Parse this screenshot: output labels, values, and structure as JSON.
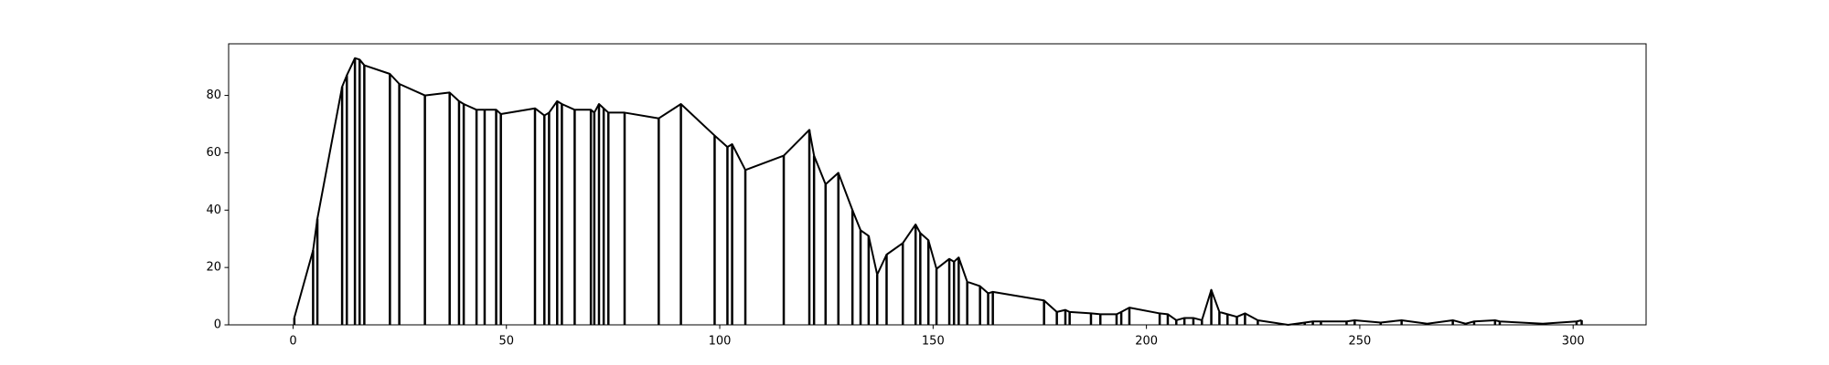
{
  "chart_data": {
    "type": "line",
    "color": "#000000",
    "x": [
      0.3,
      4.7,
      5.7,
      11.5,
      12.6,
      14.5,
      15.6,
      16.7,
      22.7,
      24.9,
      30.9,
      36.7,
      38.9,
      40,
      43,
      44.9,
      47.6,
      48.7,
      56.7,
      58.9,
      60,
      61.9,
      63,
      66,
      69.8,
      70.6,
      71.7,
      72.8,
      73.9,
      77.7,
      85.7,
      90.9,
      98.8,
      101.8,
      102.9,
      106,
      115,
      121,
      122.1,
      124.8,
      127.8,
      131.1,
      133,
      134.9,
      136.9,
      139.1,
      142.9,
      145.9,
      147,
      148.9,
      150.8,
      153.8,
      154.9,
      156,
      158,
      161,
      162.9,
      164,
      176,
      179,
      181,
      182,
      187,
      189.2,
      193,
      194.1,
      196,
      203.1,
      205,
      207,
      208.9,
      211,
      213,
      215.2,
      217.1,
      219,
      221.2,
      223.1,
      226.1,
      233.2,
      237.1,
      239,
      240.9,
      246.9,
      248.8,
      254.9,
      259.8,
      265.8,
      271.8,
      274.8,
      276.8,
      281.7,
      282.8,
      292.9,
      300.8,
      302
    ],
    "values": [
      2.5,
      26,
      37,
      83,
      87,
      93,
      92.5,
      90.5,
      87.5,
      84,
      80,
      81,
      78,
      77,
      75,
      75,
      75,
      73.5,
      75.5,
      73,
      74,
      78,
      77,
      75,
      75,
      74,
      77,
      75.5,
      74,
      74,
      72,
      77,
      66,
      62,
      63,
      54,
      59,
      68,
      59,
      49,
      53,
      40,
      33,
      31,
      17.5,
      24.5,
      28.5,
      35,
      32,
      29.5,
      19.5,
      23,
      22,
      23.5,
      15,
      13.5,
      11,
      11.5,
      8.5,
      4.5,
      5.2,
      4.5,
      4,
      3.7,
      3.7,
      4.5,
      6,
      4,
      3.7,
      1.6,
      2.4,
      2.4,
      1.6,
      12.2,
      4.5,
      3.7,
      2.8,
      4,
      1.6,
      0,
      0.8,
      1.2,
      1.2,
      1.2,
      1.6,
      0.8,
      1.6,
      0.4,
      1.6,
      0.4,
      1.2,
      1.6,
      1.2,
      0.4,
      1.2,
      1.6
    ],
    "xlim": [
      -15.1,
      317.1
    ],
    "xticks": [
      0,
      50,
      100,
      150,
      200,
      250,
      300
    ],
    "ylim": [
      0,
      98
    ],
    "yticks": [
      0,
      20,
      40,
      60,
      80
    ]
  }
}
